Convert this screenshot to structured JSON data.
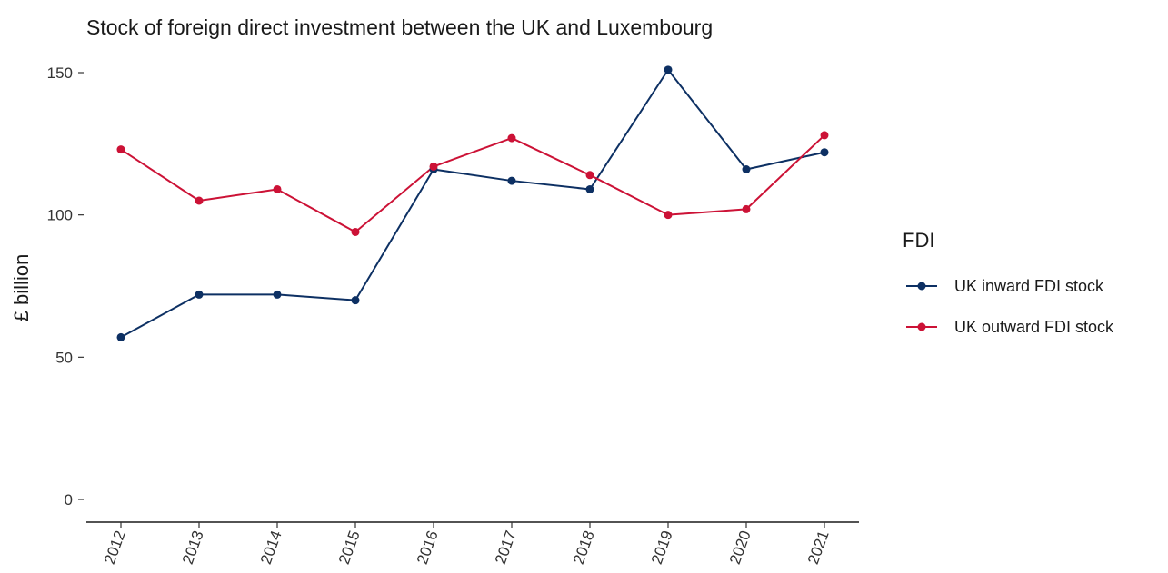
{
  "chart_data": {
    "type": "line",
    "title": "Stock of foreign direct investment between the UK and Luxembourg",
    "xlabel": "",
    "ylabel": "£ billion",
    "x": [
      "2012",
      "2013",
      "2014",
      "2015",
      "2016",
      "2017",
      "2018",
      "2019",
      "2020",
      "2021"
    ],
    "ylim": [
      0,
      150
    ],
    "yticks": [
      "0",
      "50",
      "100",
      "150"
    ],
    "grid": false,
    "legend": {
      "title": "FDI",
      "placement": "right"
    },
    "series": [
      {
        "name": "UK inward FDI stock",
        "color": "#0d3063",
        "values": [
          57,
          72,
          72,
          70,
          116,
          112,
          109,
          151,
          116,
          122
        ]
      },
      {
        "name": "UK outward FDI stock",
        "color": "#cc1236",
        "values": [
          123,
          105,
          109,
          94,
          117,
          127,
          114,
          100,
          102,
          128
        ]
      }
    ]
  }
}
